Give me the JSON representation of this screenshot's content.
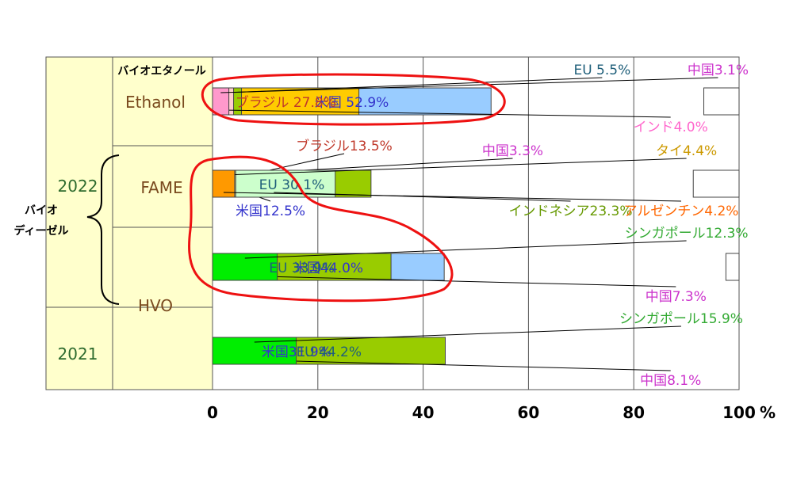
{
  "chart_data": {
    "type": "bar",
    "stacked": true,
    "orientation": "horizontal",
    "xlim": [
      0,
      100
    ],
    "x_ticks": [
      "0",
      "20",
      "40",
      "60",
      "80",
      "100"
    ],
    "x_unit": "%",
    "grid": true,
    "row_groups": {
      "top_header": "バイオエタノール",
      "left_header": "バイオ\nディーゼル",
      "year_2022": "2022",
      "year_2021": "2021"
    },
    "rows": [
      {
        "label": "Ethanol",
        "segments": [
          {
            "value": 52.9,
            "label": "米国 52.9%",
            "color": "#99ccff",
            "label_color": "#3333cc",
            "text_align": "inside"
          },
          {
            "value": 27.8,
            "label": "ブラジル 27.8%",
            "color": "#ffcc00",
            "label_color": "#c0392b",
            "text_align": "inside"
          },
          {
            "value": 5.5,
            "label": "EU 5.5%",
            "color": "#99cc00",
            "label_color": "#1f5f7a",
            "text_align": "callout-above"
          },
          {
            "value": 4.0,
            "label": "インド4.0%",
            "color": "#ffcccc",
            "label_color": "#ff66cc",
            "text_align": "callout-below"
          },
          {
            "value": 3.1,
            "label": "中国3.1%",
            "color": "#ff99cc",
            "label_color": "#cc33cc",
            "text_align": "callout-above"
          }
        ]
      },
      {
        "label": "FAME",
        "segments": [
          {
            "value": 12.5,
            "label": "米国12.5%",
            "color": "#99ccff",
            "label_color": "#3333cc",
            "text_align": "callout-below"
          },
          {
            "value": 13.5,
            "label": "ブラジル13.5%",
            "color": "#ffcc00",
            "label_color": "#c0392b",
            "text_align": "callout-above"
          },
          {
            "value": 30.1,
            "label": "EU 30.1%",
            "color": "#99cc00",
            "label_color": "#1f5f7a",
            "text_align": "inside"
          },
          {
            "value": 3.3,
            "label": "中国3.3%",
            "color": "#ff99cc",
            "label_color": "#cc33cc",
            "text_align": "callout-above"
          },
          {
            "value": 23.3,
            "label": "インドネシア23.3%",
            "color": "#ccffcc",
            "label_color": "#669900",
            "text_align": "callout-below"
          },
          {
            "value": 4.4,
            "label": "タイ4.4%",
            "color": "#ffff99",
            "label_color": "#cc9900",
            "text_align": "callout-above"
          },
          {
            "value": 4.2,
            "label": "アルゼンチン4.2%",
            "color": "#ff9900",
            "label_color": "#ff6600",
            "text_align": "callout-below"
          }
        ]
      },
      {
        "label": "HVO",
        "segments": [
          {
            "value": 44.0,
            "label": "米国44.0%",
            "color": "#99ccff",
            "label_color": "#3333cc",
            "text_align": "inside"
          },
          {
            "value": 33.9,
            "label": "EU 33.9%",
            "color": "#99cc00",
            "label_color": "#1f5f7a",
            "text_align": "inside"
          },
          {
            "value": 7.3,
            "label": "中国7.3%",
            "color": "#ff99cc",
            "label_color": "#cc33cc",
            "text_align": "callout-below"
          },
          {
            "value": 12.3,
            "label": "シンガポール12.3%",
            "color": "#00ee00",
            "label_color": "#33aa33",
            "text_align": "callout-above"
          }
        ]
      },
      {
        "label": "",
        "segments": [
          {
            "value": 31.9,
            "label": "米国31.9%",
            "color": "#99ccff",
            "label_color": "#3333cc",
            "text_align": "inside"
          },
          {
            "value": 44.2,
            "label": "EU 44.2%",
            "color": "#99cc00",
            "label_color": "#1f5f7a",
            "text_align": "inside"
          },
          {
            "value": 8.1,
            "label": "中国8.1%",
            "color": "#ff99cc",
            "label_color": "#cc33cc",
            "text_align": "callout-below"
          },
          {
            "value": 15.9,
            "label": "シンガポール15.9%",
            "color": "#00ee00",
            "label_color": "#33aa33",
            "text_align": "callout-above"
          }
        ]
      }
    ],
    "highlight_circles": [
      "US Ethanol (52.9%)",
      "US FAME + HVO (12.5%, 44.0%)"
    ],
    "colors": {
      "highlight": "#ee1111",
      "label_panel": "#ffffcc",
      "grid": "#555555"
    }
  }
}
